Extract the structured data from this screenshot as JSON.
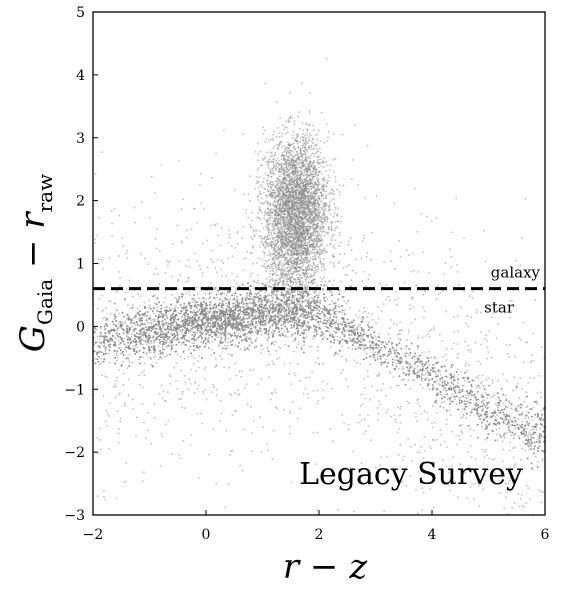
{
  "chart_data": {
    "type": "scatter",
    "title": "",
    "xlabel": "r − z",
    "ylabel": {
      "main": "G",
      "main_sub": "Gaia",
      "minus": " − ",
      "second": "r",
      "second_sub": "raw"
    },
    "xlim": [
      -2,
      6
    ],
    "ylim": [
      -3,
      5
    ],
    "xticks": [
      -2,
      0,
      2,
      4,
      6
    ],
    "yticks": [
      -3,
      -2,
      -1,
      0,
      1,
      2,
      3,
      4,
      5
    ],
    "xtick_labels": [
      "−2",
      "0",
      "2",
      "4",
      "6"
    ],
    "ytick_labels": [
      "−3",
      "−2",
      "−1",
      "0",
      "1",
      "2",
      "3",
      "4",
      "5"
    ],
    "grid": false,
    "point_color": "#8c8c8c",
    "annotations": {
      "upper": "galaxy",
      "lower": "star",
      "panel": "Legacy Survey"
    },
    "threshold_line": {
      "y": 0.6,
      "style": "dashed",
      "color": "#000000"
    },
    "distribution": {
      "star_sequence": [
        {
          "x": -2.0,
          "y": -0.25
        },
        {
          "x": -1.0,
          "y": -0.1
        },
        {
          "x": 0.0,
          "y": 0.1
        },
        {
          "x": 1.0,
          "y": 0.2
        },
        {
          "x": 2.0,
          "y": 0.2
        },
        {
          "x": 3.0,
          "y": -0.3
        },
        {
          "x": 4.0,
          "y": -0.8
        },
        {
          "x": 5.0,
          "y": -1.35
        },
        {
          "x": 6.0,
          "y": -1.75
        }
      ],
      "galaxy_cloud_center": {
        "x": 1.6,
        "y": 1.9
      },
      "galaxy_cloud_spread": {
        "x": 0.28,
        "y": 0.55
      }
    }
  }
}
